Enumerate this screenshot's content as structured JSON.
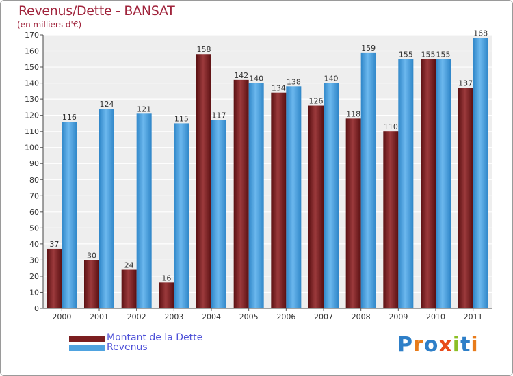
{
  "chart_data": {
    "type": "bar",
    "title": "Revenus/Dette - BANSAT",
    "subtitle": "(en milliers d'€)",
    "categories": [
      "2000",
      "2001",
      "2002",
      "2003",
      "2004",
      "2005",
      "2006",
      "2007",
      "2008",
      "2009",
      "2010",
      "2011"
    ],
    "series": [
      {
        "name": "Montant de la Dette",
        "color": "#7b1e20",
        "values": [
          37,
          30,
          24,
          16,
          158,
          142,
          134,
          126,
          118,
          110,
          155,
          137
        ]
      },
      {
        "name": "Revenus",
        "color": "#4fa3e0",
        "values": [
          116,
          124,
          121,
          115,
          117,
          140,
          138,
          140,
          159,
          155,
          155,
          168
        ]
      }
    ],
    "ylim": [
      0,
      170
    ],
    "yticks": [
      0,
      10,
      20,
      30,
      40,
      50,
      60,
      70,
      80,
      90,
      100,
      110,
      120,
      130,
      140,
      150,
      160,
      170
    ],
    "grid": true,
    "legend_position": "bottom-left"
  },
  "brand": {
    "text": "Proxiti",
    "letters": [
      "P",
      "r",
      "o",
      "x",
      "i",
      "t",
      "i"
    ],
    "colors": [
      "#2e7fc8",
      "#e87b1a",
      "#2e7fc8",
      "#e84a1a",
      "#8cbf26",
      "#2e7fc8",
      "#e87b1a"
    ]
  }
}
